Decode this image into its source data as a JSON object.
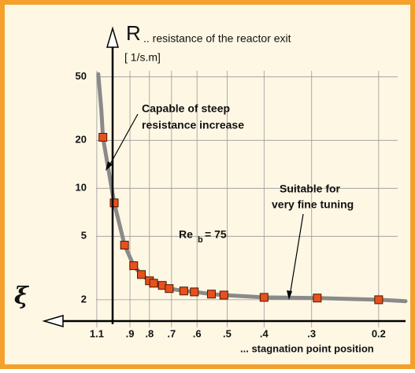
{
  "chart_data": {
    "type": "scatter-curve",
    "axis_title": "R",
    "axis_subtitle": ".. resistance of the reactor exit",
    "axis_unit": "[ 1/s.m]",
    "x_symbol": "ξ",
    "x_label": "... stagnation point position",
    "annotations": [
      "Capable of steep",
      "resistance increase",
      "Suitable for",
      "very fine tuning"
    ],
    "re_label": {
      "main": "Re",
      "sub": "b",
      "rest": "= 75"
    },
    "xlim": [
      1.52,
      0.17
    ],
    "xlog": true,
    "xticks": [
      1.1,
      {
        "value": 0.9,
        "label": ".9"
      },
      {
        "value": 0.8,
        "label": ".8"
      },
      {
        "value": 0.7,
        "label": ".7"
      },
      {
        "value": 0.6,
        "label": ".6"
      },
      {
        "value": 0.5,
        "label": ".5"
      },
      {
        "value": 0.4,
        "label": ".4"
      },
      {
        "value": 0.3,
        "label": ".3"
      },
      0.2
    ],
    "ylim": [
      1.47,
      91
    ],
    "ylog": true,
    "yticks": [
      2,
      5,
      10,
      20,
      50
    ],
    "grid": true,
    "series": [
      {
        "kind": "line",
        "color": "#8a8a8a",
        "x": [
          1.09,
          1.07,
          1.06,
          0.99,
          0.93,
          0.88,
          0.84,
          0.8,
          0.78,
          0.74,
          0.71,
          0.65,
          0.61,
          0.55,
          0.51,
          0.4,
          0.29,
          0.2,
          0.17
        ],
        "values": [
          52,
          31,
          20.9,
          8.1,
          4.4,
          3.27,
          2.88,
          2.63,
          2.54,
          2.46,
          2.35,
          2.27,
          2.24,
          2.17,
          2.14,
          2.07,
          2.05,
          2.0,
          1.96
        ]
      },
      {
        "kind": "points",
        "color": "#e8501c",
        "x": [
          1.06,
          0.99,
          0.93,
          0.88,
          0.84,
          0.8,
          0.78,
          0.74,
          0.71,
          0.65,
          0.61,
          0.55,
          0.51,
          0.4,
          0.29,
          0.2
        ],
        "values": [
          20.9,
          8.1,
          4.4,
          3.27,
          2.88,
          2.63,
          2.54,
          2.46,
          2.35,
          2.27,
          2.24,
          2.17,
          2.14,
          2.07,
          2.05,
          2.0
        ]
      }
    ]
  }
}
